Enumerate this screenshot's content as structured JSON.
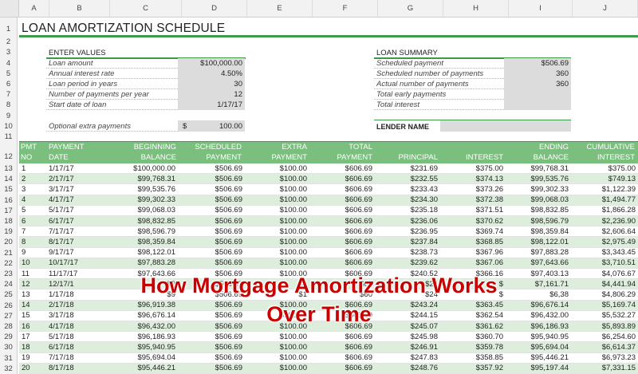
{
  "columns": [
    "A",
    "B",
    "C",
    "D",
    "E",
    "F",
    "G",
    "H",
    "I",
    "J"
  ],
  "rows_top": [
    "1",
    "2",
    "3",
    "4",
    "5",
    "6",
    "7",
    "8",
    "9",
    "10",
    "11",
    "12"
  ],
  "title": "LOAN AMORTIZATION SCHEDULE",
  "enter_values": {
    "heading": "ENTER VALUES",
    "items": [
      {
        "label": "Loan amount",
        "value": "$100,000.00"
      },
      {
        "label": "Annual interest rate",
        "value": "4.50%"
      },
      {
        "label": "Loan period in years",
        "value": "30"
      },
      {
        "label": "Number of payments per year",
        "value": "12"
      },
      {
        "label": "Start date of loan",
        "value": "1/17/17"
      }
    ],
    "extra": {
      "label": "Optional extra payments",
      "currency": "$",
      "value": "100.00"
    }
  },
  "loan_summary": {
    "heading": "LOAN SUMMARY",
    "items": [
      {
        "label": "Scheduled payment",
        "value": "$506.69"
      },
      {
        "label": "Scheduled number of payments",
        "value": "360"
      },
      {
        "label": "Actual number of payments",
        "value": "360"
      },
      {
        "label": "Total early payments",
        "value": ""
      },
      {
        "label": "Total interest",
        "value": ""
      }
    ],
    "lender_label": "LENDER NAME"
  },
  "table": {
    "headers": [
      [
        "PMT",
        "NO"
      ],
      [
        "PAYMENT",
        "DATE"
      ],
      [
        "BEGINNING",
        "BALANCE"
      ],
      [
        "SCHEDULED",
        "PAYMENT"
      ],
      [
        "EXTRA",
        "PAYMENT"
      ],
      [
        "TOTAL",
        "PAYMENT"
      ],
      [
        "",
        "PRINCIPAL"
      ],
      [
        "",
        "INTEREST"
      ],
      [
        "ENDING",
        "BALANCE"
      ],
      [
        "CUMULATIVE",
        "INTEREST"
      ]
    ],
    "rows": [
      {
        "row": "13",
        "c": [
          "1",
          "1/17/17",
          "$100,000.00",
          "$506.69",
          "$100.00",
          "$606.69",
          "$231.69",
          "$375.00",
          "$99,768.31",
          "$375.00"
        ]
      },
      {
        "row": "14",
        "c": [
          "2",
          "2/17/17",
          "$99,768.31",
          "$506.69",
          "$100.00",
          "$606.69",
          "$232.55",
          "$374.13",
          "$99,535.76",
          "$749.13"
        ]
      },
      {
        "row": "15",
        "c": [
          "3",
          "3/17/17",
          "$99,535.76",
          "$506.69",
          "$100.00",
          "$606.69",
          "$233.43",
          "$373.26",
          "$99,302.33",
          "$1,122.39"
        ]
      },
      {
        "row": "16",
        "c": [
          "4",
          "4/17/17",
          "$99,302.33",
          "$506.69",
          "$100.00",
          "$606.69",
          "$234.30",
          "$372.38",
          "$99,068.03",
          "$1,494.77"
        ]
      },
      {
        "row": "17",
        "c": [
          "5",
          "5/17/17",
          "$99,068.03",
          "$506.69",
          "$100.00",
          "$606.69",
          "$235.18",
          "$371.51",
          "$98,832.85",
          "$1,866.28"
        ]
      },
      {
        "row": "18",
        "c": [
          "6",
          "6/17/17",
          "$98,832.85",
          "$506.69",
          "$100.00",
          "$606.69",
          "$236.06",
          "$370.62",
          "$98,596.79",
          "$2,236.90"
        ]
      },
      {
        "row": "19",
        "c": [
          "7",
          "7/17/17",
          "$98,596.79",
          "$506.69",
          "$100.00",
          "$606.69",
          "$236.95",
          "$369.74",
          "$98,359.84",
          "$2,606.64"
        ]
      },
      {
        "row": "20",
        "c": [
          "8",
          "8/17/17",
          "$98,359.84",
          "$506.69",
          "$100.00",
          "$606.69",
          "$237.84",
          "$368.85",
          "$98,122.01",
          "$2,975.49"
        ]
      },
      {
        "row": "21",
        "c": [
          "9",
          "9/17/17",
          "$98,122.01",
          "$506.69",
          "$100.00",
          "$606.69",
          "$238.73",
          "$367.96",
          "$97,883.28",
          "$3,343.45"
        ]
      },
      {
        "row": "22",
        "c": [
          "10",
          "10/17/17",
          "$97,883.28",
          "$506.69",
          "$100.00",
          "$606.69",
          "$239.62",
          "$367.06",
          "$97,643.66",
          "$3,710.51"
        ]
      },
      {
        "row": "23",
        "c": [
          "11",
          "11/17/17",
          "$97,643.66",
          "$506.69",
          "$100.00",
          "$606.69",
          "$240.52",
          "$366.16",
          "$97,403.13",
          "$4,076.67"
        ]
      },
      {
        "row": "24",
        "c": [
          "12",
          "12/17/1",
          "$9",
          "$506.69",
          "$1",
          "$60",
          "$24",
          "$",
          "$7,161.71",
          "$4,441.94"
        ]
      },
      {
        "row": "25",
        "c": [
          "13",
          "1/17/18",
          "$9",
          "$506.69",
          "$1",
          "$60",
          "$24",
          "$",
          "$6,38",
          "$4,806.29"
        ]
      },
      {
        "row": "26",
        "c": [
          "14",
          "2/17/18",
          "$96,919.38",
          "$506.69",
          "$100.00",
          "$606.69",
          "$243.24",
          "$363.45",
          "$96,676.14",
          "$5,169.74"
        ]
      },
      {
        "row": "27",
        "c": [
          "15",
          "3/17/18",
          "$96,676.14",
          "$506.69",
          "$100.00",
          "$606.69",
          "$244.15",
          "$362.54",
          "$96,432.00",
          "$5,532.27"
        ]
      },
      {
        "row": "28",
        "c": [
          "16",
          "4/17/18",
          "$96,432.00",
          "$506.69",
          "$100.00",
          "$606.69",
          "$245.07",
          "$361.62",
          "$96,186.93",
          "$5,893.89"
        ]
      },
      {
        "row": "29",
        "c": [
          "17",
          "5/17/18",
          "$96,186.93",
          "$506.69",
          "$100.00",
          "$606.69",
          "$245.98",
          "$360.70",
          "$95,940.95",
          "$6,254.60"
        ]
      },
      {
        "row": "30",
        "c": [
          "18",
          "6/17/18",
          "$95,940.95",
          "$506.69",
          "$100.00",
          "$606.69",
          "$246.91",
          "$359.78",
          "$95,694.04",
          "$6,614.37"
        ]
      },
      {
        "row": "31",
        "c": [
          "19",
          "7/17/18",
          "$95,694.04",
          "$506.69",
          "$100.00",
          "$606.69",
          "$247.83",
          "$358.85",
          "$95,446.21",
          "$6,973.23"
        ]
      },
      {
        "row": "32",
        "c": [
          "20",
          "8/17/18",
          "$95,446.21",
          "$506.69",
          "$100.00",
          "$606.69",
          "$248.76",
          "$357.92",
          "$95,197.44",
          "$7,331.15"
        ]
      }
    ]
  },
  "overlay": {
    "line1": "How Mortgage Amortization Works",
    "line2": "Over Time"
  },
  "colors": {
    "accent": "#3d9a4a",
    "header_band": "#7bbf7f",
    "stripe": "#ddeedd",
    "overlay": "#c80000"
  }
}
